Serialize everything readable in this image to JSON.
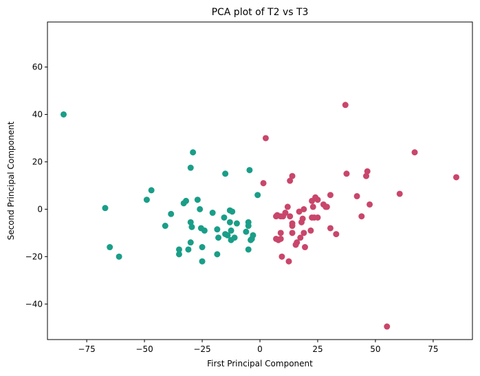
{
  "chart_data": {
    "type": "scatter",
    "title": "PCA plot of T2 vs T3",
    "xlabel": "First Principal Component",
    "ylabel": "Second Principal Component",
    "xlim": [
      -92,
      92
    ],
    "ylim": [
      -55,
      79
    ],
    "xticks": [
      -75,
      -50,
      -25,
      0,
      25,
      50,
      75
    ],
    "yticks": [
      -40,
      -20,
      0,
      20,
      40,
      60
    ],
    "grid": false,
    "legend": "none",
    "series": [
      {
        "color": "#1a9e88",
        "points": [
          [
            -85,
            40
          ],
          [
            -67,
            0.5
          ],
          [
            -65,
            -16
          ],
          [
            -61,
            -20
          ],
          [
            -49,
            4
          ],
          [
            -47,
            8
          ],
          [
            -41,
            -7
          ],
          [
            -38.5,
            -2
          ],
          [
            -35,
            -17
          ],
          [
            -35,
            -19
          ],
          [
            -33,
            2.5
          ],
          [
            -32,
            3.5
          ],
          [
            -31,
            -17
          ],
          [
            -30,
            -5.5
          ],
          [
            -30,
            -14
          ],
          [
            -29.5,
            -7.5
          ],
          [
            -30,
            17.5
          ],
          [
            -29,
            24
          ],
          [
            -27,
            4
          ],
          [
            -26,
            0
          ],
          [
            -25.5,
            -8
          ],
          [
            -25,
            -16
          ],
          [
            -25,
            -22
          ],
          [
            -24,
            -9
          ],
          [
            -20.5,
            -1.5
          ],
          [
            -18.5,
            -8.5
          ],
          [
            -18.5,
            -19
          ],
          [
            -18,
            -12
          ],
          [
            -15.5,
            -3.5
          ],
          [
            -15,
            15
          ],
          [
            -15,
            -10.5
          ],
          [
            -14,
            -11
          ],
          [
            -13,
            -5.5
          ],
          [
            -13,
            -0.5
          ],
          [
            -12.5,
            -9
          ],
          [
            -12.5,
            -13
          ],
          [
            -12,
            -1
          ],
          [
            -11,
            -12
          ],
          [
            -10,
            -6
          ],
          [
            -6,
            -9.5
          ],
          [
            -5,
            -5.5
          ],
          [
            -5,
            -7
          ],
          [
            -5,
            -17
          ],
          [
            -4.5,
            16.5
          ],
          [
            -4,
            -13
          ],
          [
            -3.5,
            -12.5
          ],
          [
            -3,
            -11
          ],
          [
            -1,
            6
          ]
        ]
      },
      {
        "color": "#c9466b",
        "points": [
          [
            1.5,
            11
          ],
          [
            2.5,
            30
          ],
          [
            7,
            -12.5
          ],
          [
            7,
            -3
          ],
          [
            7.5,
            -2.5
          ],
          [
            8,
            -13
          ],
          [
            9,
            -10
          ],
          [
            9,
            -3
          ],
          [
            9,
            -12.5
          ],
          [
            9.5,
            -20
          ],
          [
            10,
            -3
          ],
          [
            11,
            -1.5
          ],
          [
            12,
            1
          ],
          [
            12.5,
            -22
          ],
          [
            13,
            -3
          ],
          [
            13,
            12
          ],
          [
            14,
            14
          ],
          [
            14,
            -6
          ],
          [
            14,
            -10
          ],
          [
            14,
            -7
          ],
          [
            15.5,
            -15
          ],
          [
            16,
            -14
          ],
          [
            17,
            -1
          ],
          [
            17.5,
            -12
          ],
          [
            18,
            -5.5
          ],
          [
            18.5,
            -4
          ],
          [
            19,
            0
          ],
          [
            19,
            -10
          ],
          [
            19.5,
            -16
          ],
          [
            22,
            -9
          ],
          [
            22.5,
            -3.5
          ],
          [
            22.5,
            3.5
          ],
          [
            23,
            1
          ],
          [
            23.5,
            -3.5
          ],
          [
            24,
            5
          ],
          [
            25,
            -3.5
          ],
          [
            25,
            4
          ],
          [
            27.5,
            2
          ],
          [
            28.5,
            1
          ],
          [
            29,
            1
          ],
          [
            30.5,
            6
          ],
          [
            30.5,
            -8
          ],
          [
            33,
            -10.5
          ],
          [
            37,
            44
          ],
          [
            37.5,
            15
          ],
          [
            42,
            5.5
          ],
          [
            44,
            -3
          ],
          [
            46,
            14
          ],
          [
            46.5,
            16
          ],
          [
            47.5,
            2
          ],
          [
            55,
            -49.5
          ],
          [
            60.5,
            6.5
          ],
          [
            67,
            24
          ],
          [
            85,
            13.5
          ]
        ]
      }
    ]
  }
}
